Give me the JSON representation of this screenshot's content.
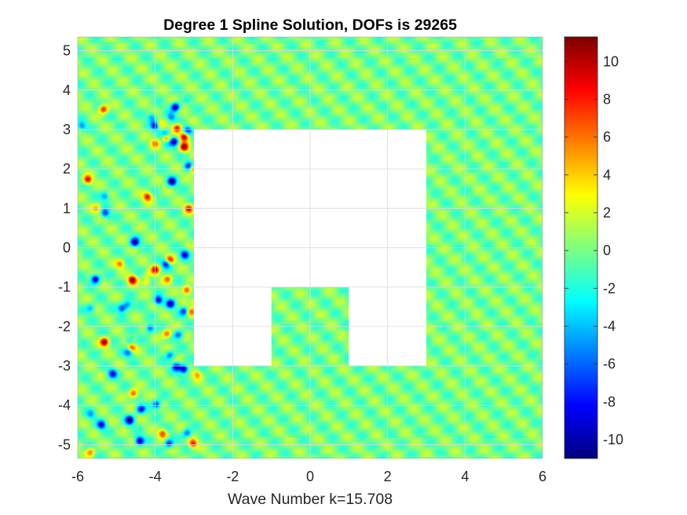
{
  "chart_data": {
    "type": "heatmap",
    "title": "Degree 1 Spline Solution, DOFs is 29265",
    "xlabel": "Wave Number k=15.708",
    "ylabel": "",
    "xlim": [
      -6,
      6
    ],
    "ylim": [
      -5.35,
      5.35
    ],
    "x_ticks": [
      "-6",
      "-4",
      "-2",
      "0",
      "2",
      "4",
      "6"
    ],
    "x_tick_values": [
      -6,
      -4,
      -2,
      0,
      2,
      4,
      6
    ],
    "y_ticks": [
      "5",
      "4",
      "3",
      "2",
      "1",
      "0",
      "-1",
      "-2",
      "-3",
      "-4",
      "-5"
    ],
    "y_tick_values": [
      5,
      4,
      3,
      2,
      1,
      0,
      -1,
      -2,
      -3,
      -4,
      -5
    ],
    "grid": true,
    "colormap": "jet",
    "colorbar": {
      "range": [
        -11,
        11.3
      ],
      "ticks": [
        "10",
        "8",
        "6",
        "4",
        "2",
        "0",
        "-2",
        "-4",
        "-6",
        "-8",
        "-10"
      ],
      "tick_values": [
        10,
        8,
        6,
        4,
        2,
        0,
        -2,
        -4,
        -6,
        -8,
        -10
      ],
      "location": "right"
    },
    "wave_number": 15.708,
    "cavity_region": {
      "outer": [
        [
          -3,
          -3
        ],
        [
          -1,
          -3
        ],
        [
          -1,
          -1
        ],
        [
          1,
          -1
        ],
        [
          1,
          -3
        ],
        [
          3,
          -3
        ],
        [
          3,
          3
        ],
        [
          -3,
          3
        ]
      ]
    },
    "field_description": "plane wave background near 0 with high-amplitude scattering lobes (|u| up to about 10) near x from -6 to -3"
  },
  "colors": {
    "axis": "#262626",
    "grid": "#d9d9d9",
    "background": "#ffffff",
    "field_base": "#7fff7f"
  }
}
